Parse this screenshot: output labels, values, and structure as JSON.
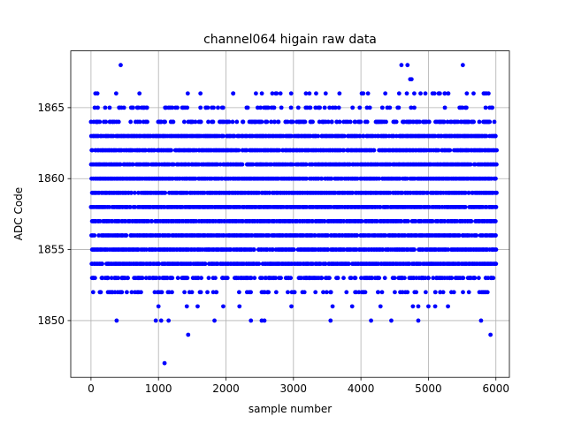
{
  "chart_data": {
    "type": "scatter",
    "title": "channel064 higain raw data",
    "xlabel": "sample number",
    "ylabel": "ADC Code",
    "xlim": [
      -300,
      6200
    ],
    "ylim": [
      1846,
      1869
    ],
    "xticks": [
      0,
      1000,
      2000,
      3000,
      4000,
      5000,
      6000
    ],
    "yticks": [
      1850,
      1855,
      1860,
      1865
    ],
    "grid": true,
    "marker_color": "#0000ff",
    "n_samples": 6000,
    "levels": [
      1847,
      1849,
      1850,
      1851,
      1852,
      1853,
      1854,
      1855,
      1856,
      1857,
      1858,
      1859,
      1860,
      1861,
      1862,
      1863,
      1864,
      1865,
      1866,
      1867,
      1868
    ],
    "dense_levels": [
      1854,
      1855,
      1856,
      1857,
      1858,
      1859,
      1860,
      1861,
      1862,
      1863
    ],
    "sparse_points": [
      {
        "x": 1090,
        "y": 1847
      },
      {
        "x": 1440,
        "y": 1849
      },
      {
        "x": 5920,
        "y": 1849
      },
      {
        "x": 380,
        "y": 1850
      },
      {
        "x": 960,
        "y": 1850
      },
      {
        "x": 1040,
        "y": 1850
      },
      {
        "x": 1150,
        "y": 1850
      },
      {
        "x": 1830,
        "y": 1850
      },
      {
        "x": 2370,
        "y": 1850
      },
      {
        "x": 2530,
        "y": 1850
      },
      {
        "x": 2570,
        "y": 1850
      },
      {
        "x": 3550,
        "y": 1850
      },
      {
        "x": 4150,
        "y": 1850
      },
      {
        "x": 4450,
        "y": 1850
      },
      {
        "x": 4850,
        "y": 1850
      },
      {
        "x": 5780,
        "y": 1850
      },
      {
        "x": 1000,
        "y": 1851
      },
      {
        "x": 1420,
        "y": 1851
      },
      {
        "x": 1580,
        "y": 1851
      },
      {
        "x": 1960,
        "y": 1851
      },
      {
        "x": 2200,
        "y": 1851
      },
      {
        "x": 2970,
        "y": 1851
      },
      {
        "x": 3580,
        "y": 1851
      },
      {
        "x": 3870,
        "y": 1851
      },
      {
        "x": 4290,
        "y": 1851
      },
      {
        "x": 4770,
        "y": 1851
      },
      {
        "x": 4850,
        "y": 1851
      },
      {
        "x": 5000,
        "y": 1851
      },
      {
        "x": 5100,
        "y": 1851
      },
      {
        "x": 5290,
        "y": 1851
      },
      {
        "x": 440,
        "y": 1868
      },
      {
        "x": 4600,
        "y": 1868
      },
      {
        "x": 4690,
        "y": 1868
      },
      {
        "x": 5510,
        "y": 1868
      },
      {
        "x": 4730,
        "y": 1867
      },
      {
        "x": 4750,
        "y": 1867
      },
      {
        "x": 4680,
        "y": 1866
      },
      {
        "x": 4790,
        "y": 1866
      }
    ],
    "level_weights": {
      "1852": 0.018,
      "1853": 0.03,
      "1864": 0.035,
      "1865": 0.014,
      "1866": 0.006
    }
  }
}
